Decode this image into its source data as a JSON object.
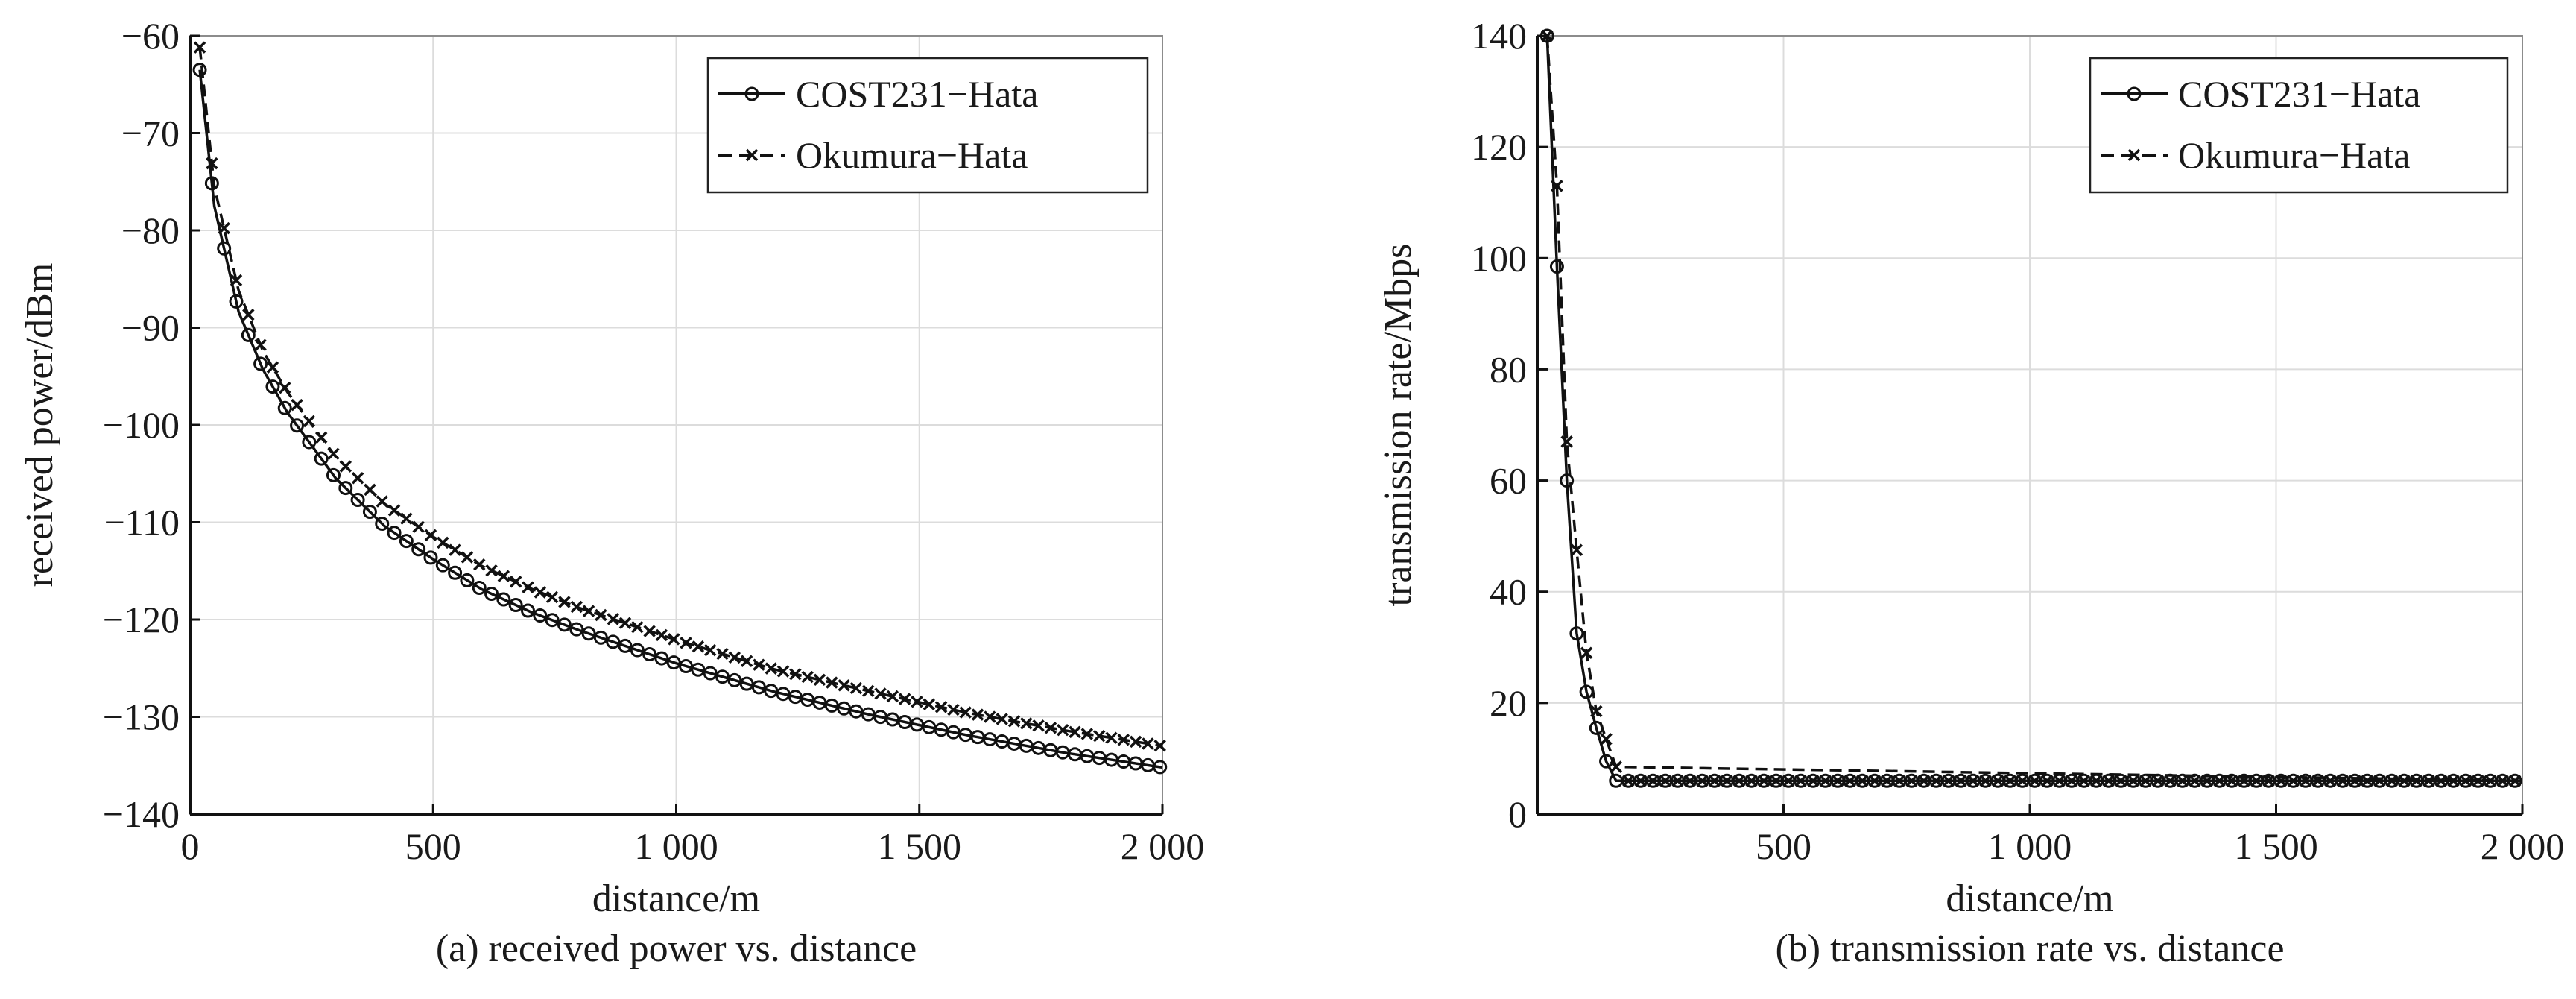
{
  "chart_data": [
    {
      "type": "line",
      "caption": "(a) received power vs. distance",
      "xlabel": "distance/m",
      "ylabel": "received power/dBm",
      "xlim": [
        0,
        2000
      ],
      "ylim": [
        -140,
        -60
      ],
      "xticks": [
        0,
        500,
        1000,
        1500,
        2000
      ],
      "xtick_labels": [
        "0",
        "500",
        "1 000",
        "1 500",
        "2 000"
      ],
      "yticks": [
        -140,
        -130,
        -120,
        -110,
        -100,
        -90,
        -80,
        -70,
        -60
      ],
      "ytick_labels": [
        "−140",
        "−130",
        "−120",
        "−110",
        "−100",
        "−90",
        "−80",
        "−70",
        "−60"
      ],
      "grid": true,
      "legend_position": "top-right",
      "series": [
        {
          "name": "COST231−Hata",
          "line": "solid",
          "marker": "circle",
          "x": [
            20,
            50,
            100,
            150,
            200,
            300,
            400,
            500,
            600,
            700,
            800,
            1000,
            1200,
            1400,
            1600,
            1800,
            2000
          ],
          "y": [
            -63.5,
            -77.5,
            -88.4,
            -94.3,
            -98.7,
            -105.5,
            -110.4,
            -113.8,
            -116.9,
            -119.2,
            -121.1,
            -124.5,
            -127.4,
            -129.8,
            -131.9,
            -133.7,
            -135.2
          ]
        },
        {
          "name": "Okumura−Hata",
          "line": "dashed",
          "marker": "x",
          "x": [
            20,
            50,
            100,
            150,
            200,
            300,
            400,
            500,
            600,
            700,
            800,
            1000,
            1200,
            1400,
            1600,
            1800,
            2000
          ],
          "y": [
            -61.2,
            -75.5,
            -86.2,
            -92.4,
            -96.6,
            -103.3,
            -108.1,
            -111.5,
            -114.5,
            -116.8,
            -118.8,
            -122.1,
            -125.1,
            -127.4,
            -129.6,
            -131.4,
            -133.0
          ]
        }
      ]
    },
    {
      "type": "line",
      "caption": "(b) transmission rate vs. distance",
      "xlabel": "distance/m",
      "ylabel": "transmission rate/Mbps",
      "xlim": [
        0,
        2000
      ],
      "ylim": [
        0,
        140
      ],
      "xticks": [
        500,
        1000,
        1500,
        2000
      ],
      "xtick_labels": [
        "500",
        "1 000",
        "1 500",
        "2 000"
      ],
      "yticks": [
        0,
        20,
        40,
        60,
        80,
        100,
        120,
        140
      ],
      "ytick_labels": [
        "0",
        "20",
        "40",
        "60",
        "80",
        "100",
        "120",
        "140"
      ],
      "grid": true,
      "legend_position": "top-right",
      "series": [
        {
          "name": "COST231−Hata",
          "line": "solid",
          "marker": "circle",
          "x": [
            20,
            40,
            60,
            80,
            100,
            120,
            140,
            160
          ],
          "y": [
            140,
            98.5,
            60,
            32.5,
            22,
            15.5,
            9.5,
            6
          ],
          "plateau": 6
        },
        {
          "name": "Okumura−Hata",
          "line": "dashed",
          "marker": "x",
          "x": [
            20,
            40,
            60,
            80,
            100,
            120,
            140,
            160
          ],
          "y": [
            140,
            113,
            67,
            47.5,
            29,
            18.5,
            13.5,
            8.5
          ],
          "plateau": 6
        }
      ]
    }
  ]
}
